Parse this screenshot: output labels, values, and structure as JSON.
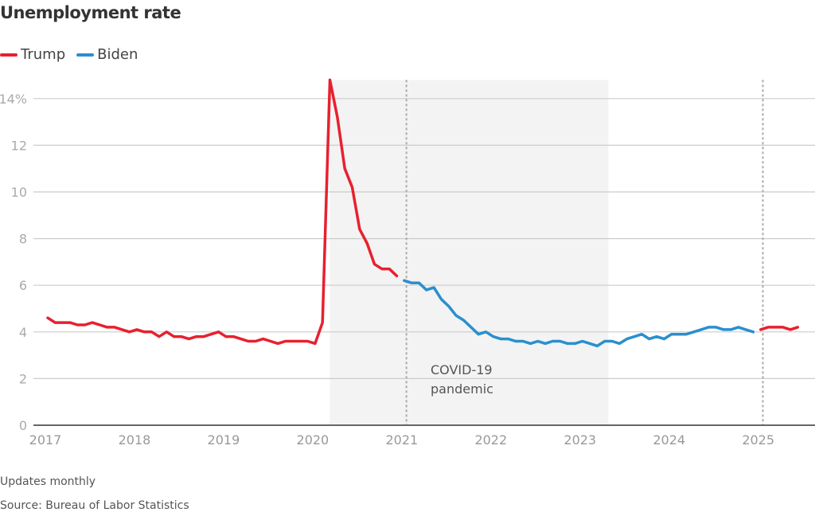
{
  "chart_data": {
    "type": "line",
    "title": "Unemployment rate",
    "xlabel": "",
    "ylabel": "",
    "ylim": [
      0,
      14.8
    ],
    "y_ticks": [
      {
        "value": 0,
        "label": "0"
      },
      {
        "value": 2,
        "label": "2"
      },
      {
        "value": 4,
        "label": "4"
      },
      {
        "value": 6,
        "label": "6"
      },
      {
        "value": 8,
        "label": "8"
      },
      {
        "value": 10,
        "label": "10"
      },
      {
        "value": 12,
        "label": "12"
      },
      {
        "value": 14,
        "label": "14%"
      }
    ],
    "x_ticks": [
      "2017",
      "2018",
      "2019",
      "2020",
      "2021",
      "2022",
      "2023",
      "2024",
      "2025"
    ],
    "x_unit": "months since Jan 2017",
    "grid": true,
    "legend_position": "top-left",
    "legend": [
      {
        "name": "Trump",
        "color": "#e8202f"
      },
      {
        "name": "Biden",
        "color": "#2a8fcf"
      }
    ],
    "shaded_period": {
      "label_line1": "COVID-19",
      "label_line2": "pandemic",
      "start_month": 38,
      "end_month": 75.5
    },
    "reference_lines": [
      {
        "month": 48.3
      },
      {
        "month": 96.3
      }
    ],
    "series": [
      {
        "name": "Trump",
        "color": "#e8202f",
        "start_month": 0,
        "values": [
          4.6,
          4.4,
          4.4,
          4.4,
          4.3,
          4.3,
          4.4,
          4.3,
          4.2,
          4.2,
          4.1,
          4.0,
          4.1,
          4.0,
          4.0,
          3.8,
          4.0,
          3.8,
          3.8,
          3.7,
          3.8,
          3.8,
          3.9,
          4.0,
          3.8,
          3.8,
          3.7,
          3.6,
          3.6,
          3.7,
          3.6,
          3.5,
          3.6,
          3.6,
          3.6,
          3.6,
          3.5,
          4.4,
          14.8,
          13.2,
          11.0,
          10.2,
          8.4,
          7.8,
          6.9,
          6.7,
          6.7,
          6.4
        ]
      },
      {
        "name": "Biden",
        "color": "#2a8fcf",
        "start_month": 48,
        "values": [
          6.2,
          6.1,
          6.1,
          5.8,
          5.9,
          5.4,
          5.1,
          4.7,
          4.5,
          4.2,
          3.9,
          4.0,
          3.8,
          3.7,
          3.7,
          3.6,
          3.6,
          3.5,
          3.6,
          3.5,
          3.6,
          3.6,
          3.5,
          3.5,
          3.6,
          3.5,
          3.4,
          3.6,
          3.6,
          3.5,
          3.7,
          3.8,
          3.9,
          3.7,
          3.8,
          3.7,
          3.9,
          3.9,
          3.9,
          4.0,
          4.1,
          4.2,
          4.2,
          4.1,
          4.1,
          4.2,
          4.1,
          4.0
        ]
      },
      {
        "name": "Trump",
        "color": "#e8202f",
        "start_month": 96,
        "values": [
          4.1,
          4.2,
          4.2,
          4.2,
          4.1,
          4.2
        ]
      }
    ]
  },
  "footer": {
    "note": "Updates monthly",
    "source": "Source: Bureau of Labor Statistics"
  }
}
